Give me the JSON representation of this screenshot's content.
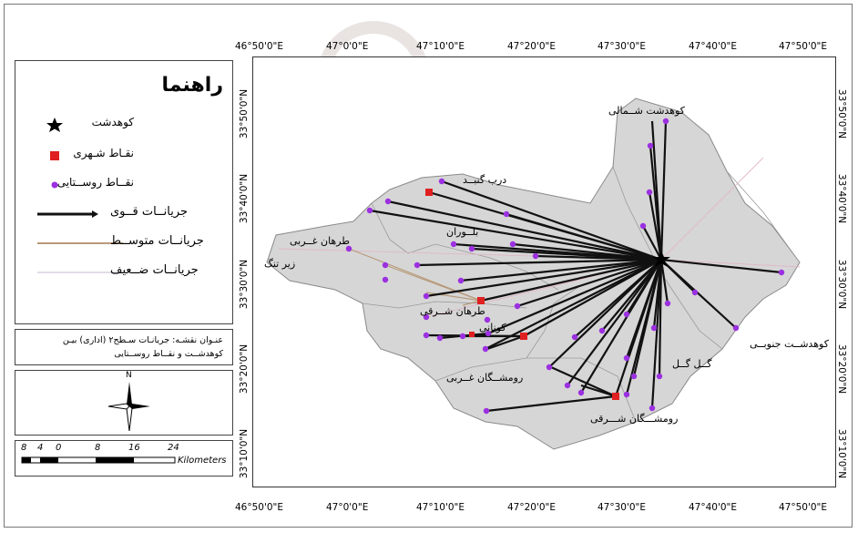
{
  "legend": {
    "title": "راهنما",
    "items": [
      {
        "label": "کوهدشت",
        "symbol": "star"
      },
      {
        "label": "نقـاط شـهری",
        "symbol": "square",
        "color": "#e02020"
      },
      {
        "label": "نقــاط روســتایی",
        "symbol": "dot",
        "color": "#9b30e0"
      },
      {
        "label": "جریانــات قــوی",
        "symbol": "thick-line"
      },
      {
        "label": "جریانــات متوســط",
        "symbol": "medium-line",
        "color": "#b89a7a"
      },
      {
        "label": "جریانــات ضــعیف",
        "symbol": "thin-line",
        "color": "#d8d0e0"
      }
    ]
  },
  "caption": {
    "line1": "عنـوان نقشـه: جریانـات سـطح۲ (اداری) بیـن",
    "line2": "کوهدشــت و نقــاط روســتایی"
  },
  "north_arrow": {
    "label": "N"
  },
  "scale_bar": {
    "ticks": [
      "8",
      "4",
      "0",
      "8",
      "16",
      "24"
    ],
    "unit": "Kilometers"
  },
  "axes": {
    "lon_labels": [
      "46°50'0\"E",
      "47°0'0\"E",
      "47°10'0\"E",
      "47°20'0\"E",
      "47°30'0\"E",
      "47°40'0\"E",
      "47°50'0\"E"
    ],
    "lat_labels": [
      "33°50'0\"N",
      "33°40'0\"N",
      "33°30'0\"N",
      "33°20'0\"N",
      "33°10'0\"N"
    ]
  },
  "places": [
    "کوهدشت شــمالی",
    "درب گنبــد",
    "بلــوران",
    "طرهان غــربی",
    "زیر تنگ",
    "طرهان شــرقی",
    "کونانی",
    "کوهدشــت جنوبــی",
    "گــل گــل",
    "رومشــگان غــربی",
    "رومشـــگان شـــرقی"
  ],
  "colors": {
    "region_fill": "#d6d6d6",
    "region_stroke": "#8a8a8a",
    "strong_flow": "#111111",
    "medium_flow": "#b89a7a",
    "weak_flow": "#e0b8c8",
    "urban": "#e02020",
    "rural": "#9b30e0"
  }
}
